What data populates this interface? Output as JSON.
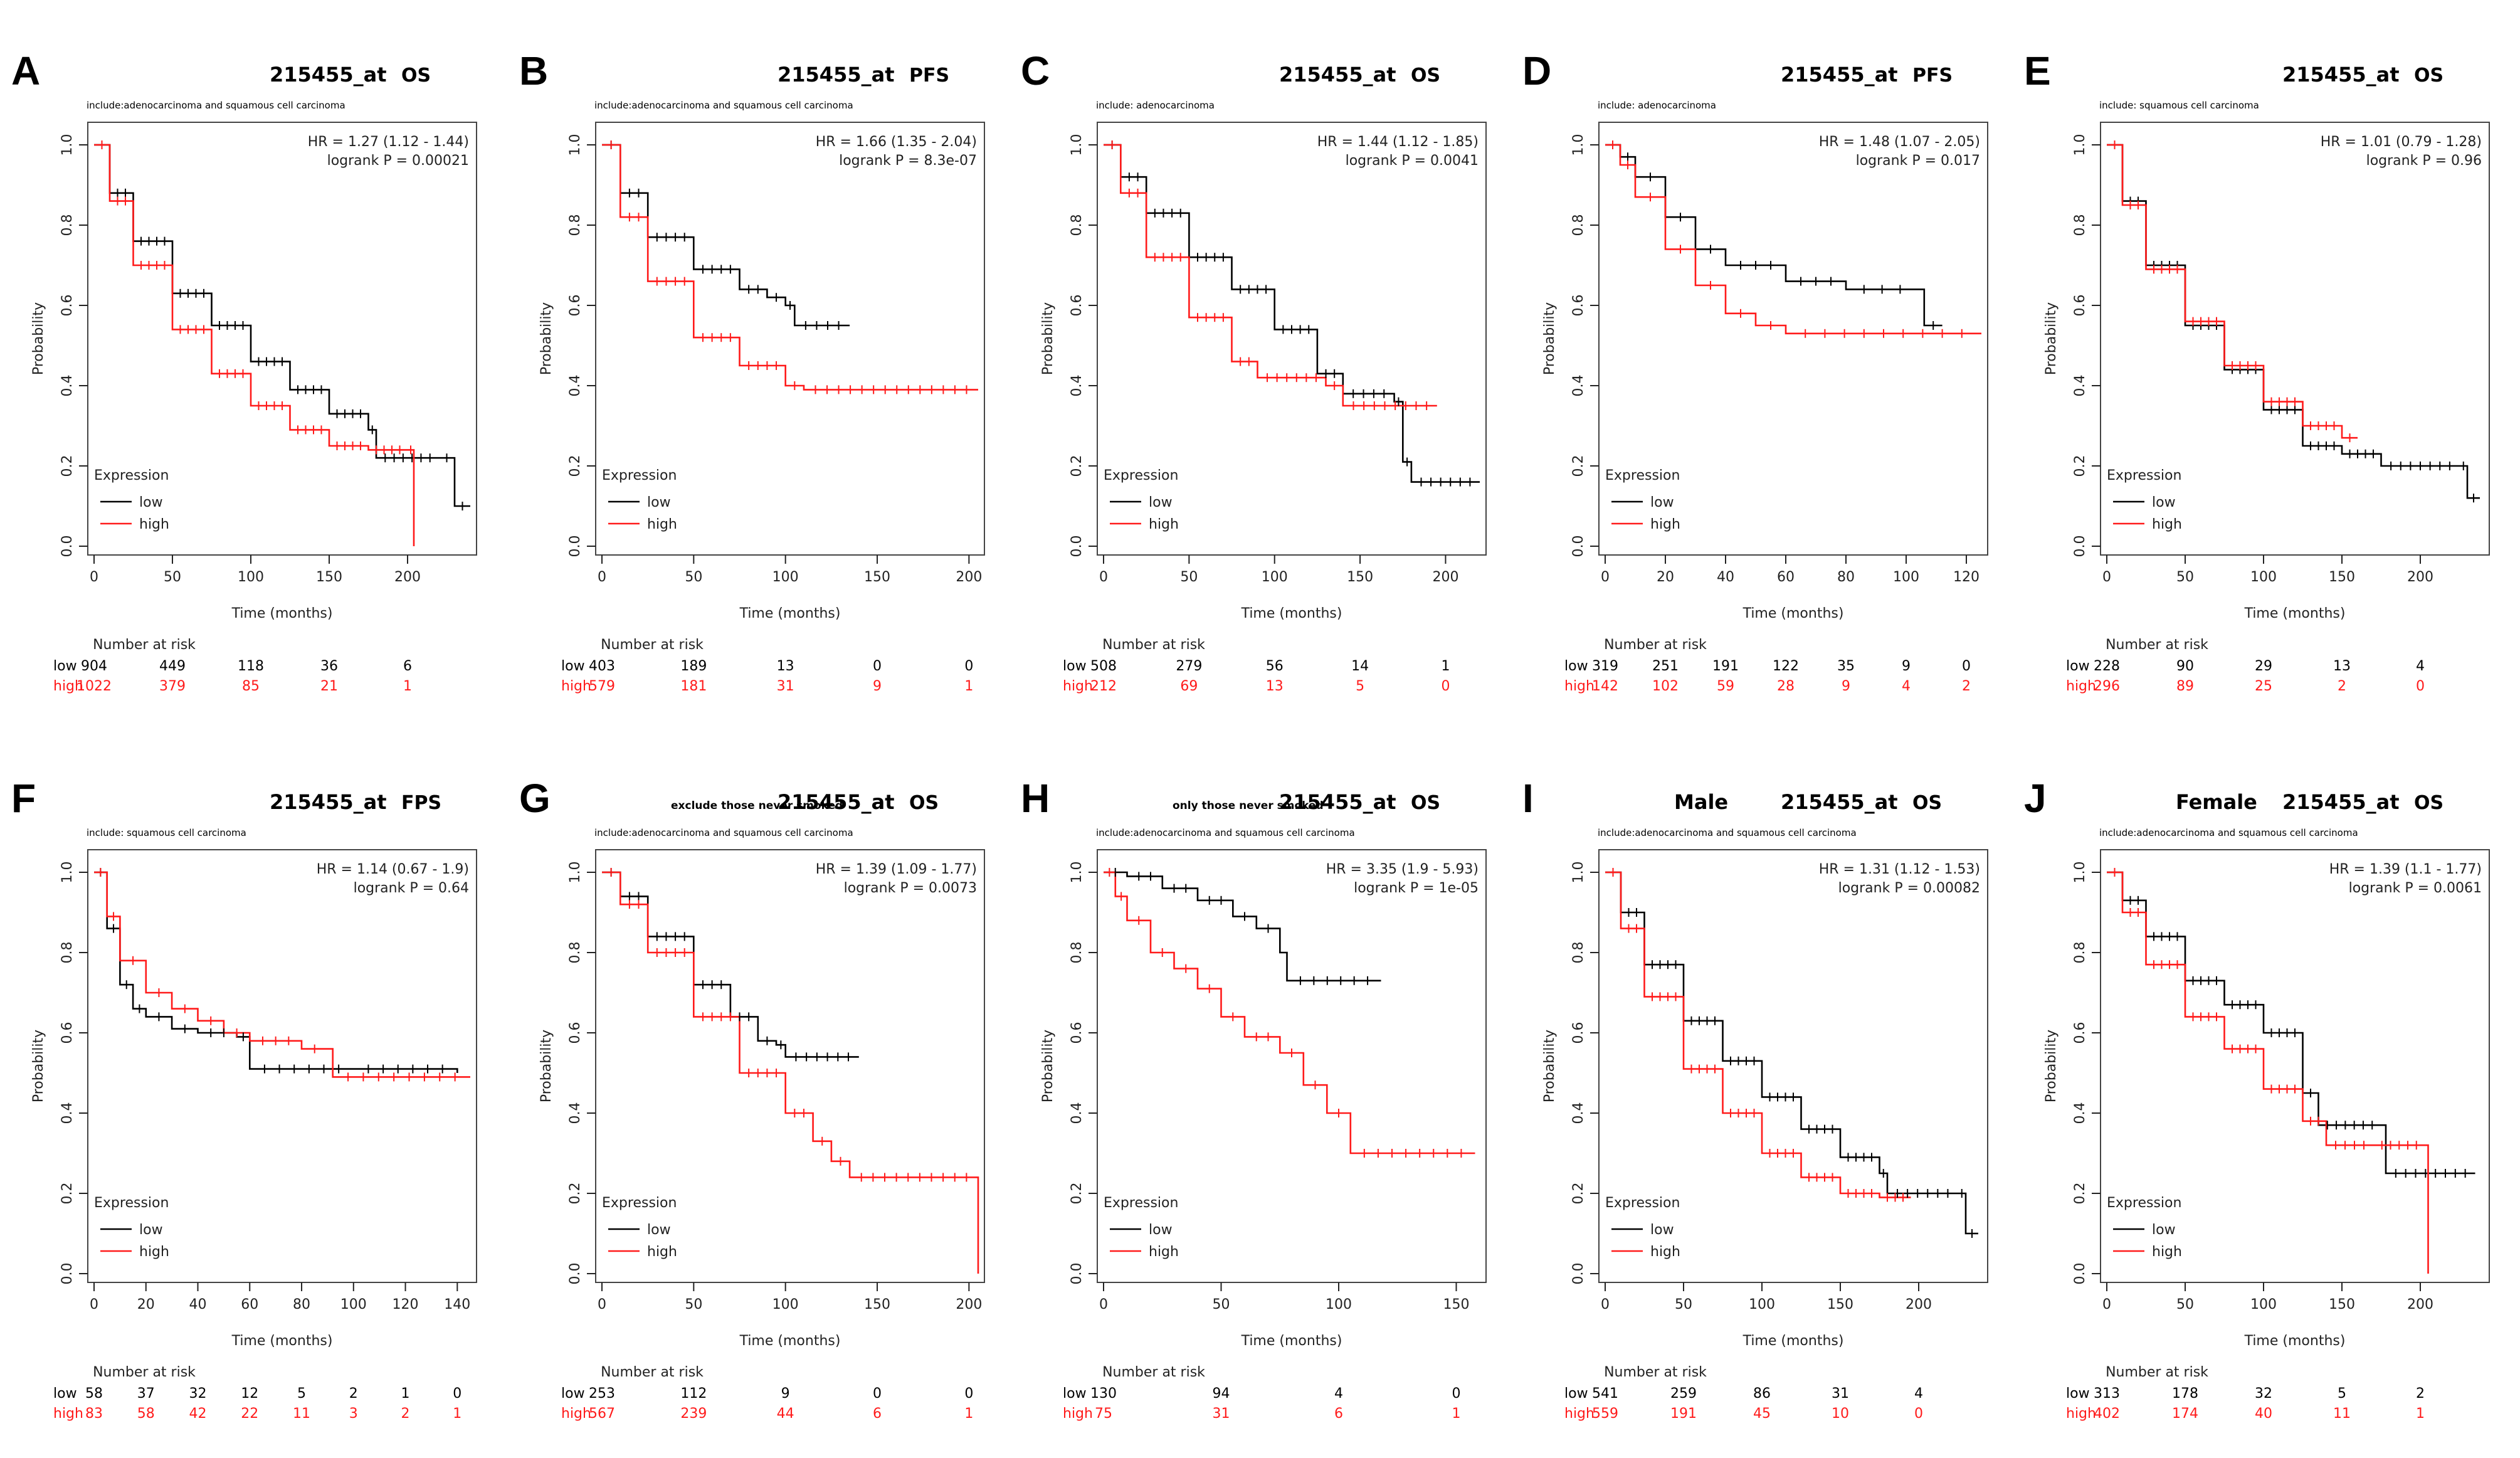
{
  "figure": {
    "colors": {
      "low": "#000000",
      "high": "#ff1a1a",
      "axis": "#222222",
      "frame": "#444444"
    },
    "common": {
      "y_label": "Probability",
      "x_label": "Time (months)",
      "legend_title": "Expression",
      "legend_low": "low",
      "legend_high": "high",
      "risk_header": "Number at risk",
      "risk_low_label": "low",
      "risk_high_label": "high",
      "y_ticks": [
        "0.0",
        "0.2",
        "0.4",
        "0.6",
        "0.8",
        "1.0"
      ]
    }
  },
  "chart_data": [
    {
      "type": "line",
      "panel": "A",
      "probe": "215455_at",
      "endpoint": "OS",
      "title_prefix": "",
      "subtitle": "include:adenocarcinoma and squamous cell carcinoma",
      "hr": "HR = 1.27 (1.12 - 1.44)",
      "logrank": "logrank P = 0.00021",
      "xmax": 240,
      "x_ticks": [
        0,
        50,
        100,
        150,
        200
      ],
      "ylim": [
        0,
        1
      ],
      "low_curve": [
        [
          0,
          1
        ],
        [
          10,
          0.88
        ],
        [
          25,
          0.76
        ],
        [
          50,
          0.63
        ],
        [
          75,
          0.55
        ],
        [
          100,
          0.46
        ],
        [
          125,
          0.39
        ],
        [
          150,
          0.33
        ],
        [
          175,
          0.29
        ],
        [
          180,
          0.22
        ],
        [
          220,
          0.22
        ],
        [
          230,
          0.1
        ],
        [
          240,
          0.1
        ]
      ],
      "high_curve": [
        [
          0,
          1
        ],
        [
          10,
          0.86
        ],
        [
          25,
          0.7
        ],
        [
          50,
          0.54
        ],
        [
          75,
          0.43
        ],
        [
          100,
          0.35
        ],
        [
          125,
          0.29
        ],
        [
          150,
          0.25
        ],
        [
          175,
          0.24
        ],
        [
          200,
          0.24
        ],
        [
          204,
          0
        ]
      ],
      "risk_times": [
        0,
        50,
        100,
        150,
        200
      ],
      "risk_low": [
        904,
        449,
        118,
        36,
        6
      ],
      "risk_high": [
        1022,
        379,
        85,
        21,
        1
      ]
    },
    {
      "type": "line",
      "panel": "B",
      "probe": "215455_at",
      "endpoint": "PFS",
      "title_prefix": "",
      "subtitle": "include:adenocarcinoma and squamous cell carcinoma",
      "hr": "HR = 1.66 (1.35 - 2.04)",
      "logrank": "logrank P = 8.3e-07",
      "xmax": 205,
      "x_ticks": [
        0,
        50,
        100,
        150,
        200
      ],
      "ylim": [
        0,
        1
      ],
      "low_curve": [
        [
          0,
          1
        ],
        [
          10,
          0.88
        ],
        [
          25,
          0.77
        ],
        [
          50,
          0.69
        ],
        [
          75,
          0.64
        ],
        [
          90,
          0.62
        ],
        [
          100,
          0.6
        ],
        [
          105,
          0.55
        ],
        [
          135,
          0.55
        ]
      ],
      "high_curve": [
        [
          0,
          1
        ],
        [
          10,
          0.82
        ],
        [
          25,
          0.66
        ],
        [
          50,
          0.52
        ],
        [
          75,
          0.45
        ],
        [
          100,
          0.4
        ],
        [
          110,
          0.39
        ],
        [
          205,
          0.39
        ]
      ],
      "risk_times": [
        0,
        50,
        100,
        150,
        200
      ],
      "risk_low": [
        403,
        189,
        13,
        0,
        0
      ],
      "risk_high": [
        579,
        181,
        31,
        9,
        1
      ]
    },
    {
      "type": "line",
      "panel": "C",
      "probe": "215455_at",
      "endpoint": "OS",
      "title_prefix": "",
      "subtitle": "include: adenocarcinoma",
      "hr": "HR = 1.44 (1.12 - 1.85)",
      "logrank": "logrank P = 0.0041",
      "xmax": 220,
      "x_ticks": [
        0,
        50,
        100,
        150,
        200
      ],
      "ylim": [
        0,
        1
      ],
      "low_curve": [
        [
          0,
          1
        ],
        [
          10,
          0.92
        ],
        [
          25,
          0.83
        ],
        [
          50,
          0.72
        ],
        [
          75,
          0.64
        ],
        [
          100,
          0.54
        ],
        [
          125,
          0.43
        ],
        [
          140,
          0.38
        ],
        [
          170,
          0.36
        ],
        [
          175,
          0.21
        ],
        [
          180,
          0.16
        ],
        [
          220,
          0.16
        ]
      ],
      "high_curve": [
        [
          0,
          1
        ],
        [
          10,
          0.88
        ],
        [
          25,
          0.72
        ],
        [
          50,
          0.57
        ],
        [
          75,
          0.46
        ],
        [
          90,
          0.42
        ],
        [
          130,
          0.4
        ],
        [
          140,
          0.35
        ],
        [
          195,
          0.35
        ]
      ],
      "risk_times": [
        0,
        50,
        100,
        150,
        200
      ],
      "risk_low": [
        508,
        279,
        56,
        14,
        1
      ],
      "risk_high": [
        212,
        69,
        13,
        5,
        0
      ]
    },
    {
      "type": "line",
      "panel": "D",
      "probe": "215455_at",
      "endpoint": "PFS",
      "title_prefix": "",
      "subtitle": "include: adenocarcinoma",
      "hr": "HR = 1.48 (1.07 - 2.05)",
      "logrank": "logrank P = 0.017",
      "xmax": 125,
      "x_ticks": [
        0,
        20,
        40,
        60,
        80,
        100,
        120
      ],
      "ylim": [
        0,
        1
      ],
      "low_curve": [
        [
          0,
          1
        ],
        [
          5,
          0.97
        ],
        [
          10,
          0.92
        ],
        [
          20,
          0.82
        ],
        [
          30,
          0.74
        ],
        [
          40,
          0.7
        ],
        [
          60,
          0.66
        ],
        [
          80,
          0.64
        ],
        [
          104,
          0.64
        ],
        [
          106,
          0.55
        ],
        [
          112,
          0.55
        ]
      ],
      "high_curve": [
        [
          0,
          1
        ],
        [
          5,
          0.95
        ],
        [
          10,
          0.87
        ],
        [
          20,
          0.74
        ],
        [
          30,
          0.65
        ],
        [
          40,
          0.58
        ],
        [
          50,
          0.55
        ],
        [
          60,
          0.53
        ],
        [
          125,
          0.53
        ]
      ],
      "risk_times": [
        0,
        20,
        40,
        60,
        80,
        100,
        120
      ],
      "risk_low": [
        319,
        251,
        191,
        122,
        35,
        9,
        0
      ],
      "risk_high": [
        142,
        102,
        59,
        28,
        9,
        4,
        2
      ]
    },
    {
      "type": "line",
      "panel": "E",
      "probe": "215455_at",
      "endpoint": "OS",
      "title_prefix": "",
      "subtitle": "include: squamous cell carcinoma",
      "hr": "HR = 1.01 (0.79 - 1.28)",
      "logrank": "logrank P = 0.96",
      "xmax": 240,
      "x_ticks": [
        0,
        50,
        100,
        150,
        200
      ],
      "ylim": [
        0,
        1
      ],
      "low_curve": [
        [
          0,
          1
        ],
        [
          10,
          0.86
        ],
        [
          25,
          0.7
        ],
        [
          50,
          0.55
        ],
        [
          75,
          0.44
        ],
        [
          100,
          0.34
        ],
        [
          125,
          0.25
        ],
        [
          150,
          0.23
        ],
        [
          175,
          0.2
        ],
        [
          225,
          0.2
        ],
        [
          230,
          0.12
        ],
        [
          238,
          0.12
        ]
      ],
      "high_curve": [
        [
          0,
          1
        ],
        [
          10,
          0.85
        ],
        [
          25,
          0.69
        ],
        [
          50,
          0.56
        ],
        [
          75,
          0.45
        ],
        [
          100,
          0.36
        ],
        [
          125,
          0.3
        ],
        [
          150,
          0.27
        ],
        [
          160,
          0.27
        ]
      ],
      "risk_times": [
        0,
        50,
        100,
        150,
        200
      ],
      "risk_low": [
        228,
        90,
        29,
        13,
        4
      ],
      "risk_high": [
        296,
        89,
        25,
        2,
        0
      ]
    },
    {
      "type": "line",
      "panel": "F",
      "probe": "215455_at",
      "endpoint": "FPS",
      "title_prefix": "",
      "subtitle": "include: squamous cell carcinoma",
      "hr": "HR = 1.14 (0.67 - 1.9)",
      "logrank": "logrank P = 0.64",
      "xmax": 145,
      "x_ticks": [
        0,
        20,
        40,
        60,
        80,
        100,
        120,
        140
      ],
      "ylim": [
        0,
        1
      ],
      "low_curve": [
        [
          0,
          1
        ],
        [
          5,
          0.86
        ],
        [
          10,
          0.72
        ],
        [
          15,
          0.66
        ],
        [
          20,
          0.64
        ],
        [
          30,
          0.61
        ],
        [
          40,
          0.6
        ],
        [
          55,
          0.59
        ],
        [
          60,
          0.51
        ],
        [
          100,
          0.51
        ],
        [
          140,
          0.5
        ]
      ],
      "high_curve": [
        [
          0,
          1
        ],
        [
          5,
          0.89
        ],
        [
          10,
          0.78
        ],
        [
          20,
          0.7
        ],
        [
          30,
          0.66
        ],
        [
          40,
          0.63
        ],
        [
          50,
          0.6
        ],
        [
          60,
          0.58
        ],
        [
          80,
          0.56
        ],
        [
          90,
          0.56
        ],
        [
          92,
          0.49
        ],
        [
          145,
          0.49
        ]
      ],
      "risk_times": [
        0,
        20,
        40,
        60,
        80,
        100,
        120,
        140
      ],
      "risk_low": [
        58,
        37,
        32,
        12,
        5,
        2,
        1,
        0
      ],
      "risk_high": [
        83,
        58,
        42,
        22,
        11,
        3,
        2,
        1
      ]
    },
    {
      "type": "line",
      "panel": "G",
      "probe": "215455_at",
      "endpoint": "OS",
      "title_prefix": "exclude those never smoked",
      "subtitle": "include:adenocarcinoma and squamous cell carcinoma",
      "hr": "HR = 1.39 (1.09 - 1.77)",
      "logrank": "logrank P = 0.0073",
      "xmax": 205,
      "x_ticks": [
        0,
        50,
        100,
        150,
        200
      ],
      "ylim": [
        0,
        1
      ],
      "low_curve": [
        [
          0,
          1
        ],
        [
          10,
          0.94
        ],
        [
          25,
          0.84
        ],
        [
          50,
          0.72
        ],
        [
          70,
          0.64
        ],
        [
          85,
          0.58
        ],
        [
          95,
          0.57
        ],
        [
          100,
          0.54
        ],
        [
          140,
          0.54
        ]
      ],
      "high_curve": [
        [
          0,
          1
        ],
        [
          10,
          0.92
        ],
        [
          25,
          0.8
        ],
        [
          50,
          0.64
        ],
        [
          75,
          0.5
        ],
        [
          100,
          0.4
        ],
        [
          115,
          0.33
        ],
        [
          125,
          0.28
        ],
        [
          135,
          0.24
        ],
        [
          205,
          0.24
        ],
        [
          205,
          0
        ]
      ],
      "risk_times": [
        0,
        50,
        100,
        150,
        200
      ],
      "risk_low": [
        253,
        112,
        9,
        0,
        0
      ],
      "risk_high": [
        567,
        239,
        44,
        6,
        1
      ]
    },
    {
      "type": "line",
      "panel": "H",
      "probe": "215455_at",
      "endpoint": "OS",
      "title_prefix": "only those never smoked",
      "subtitle": "include:adenocarcinoma and squamous cell carcinoma",
      "hr": "HR = 3.35 (1.9 - 5.93)",
      "logrank": "logrank P = 1e-05",
      "xmax": 160,
      "x_ticks": [
        0,
        50,
        100,
        150
      ],
      "ylim": [
        0,
        1
      ],
      "low_curve": [
        [
          0,
          1
        ],
        [
          10,
          0.99
        ],
        [
          25,
          0.96
        ],
        [
          40,
          0.93
        ],
        [
          55,
          0.89
        ],
        [
          65,
          0.86
        ],
        [
          75,
          0.8
        ],
        [
          78,
          0.73
        ],
        [
          118,
          0.73
        ]
      ],
      "high_curve": [
        [
          0,
          1
        ],
        [
          5,
          0.94
        ],
        [
          10,
          0.88
        ],
        [
          20,
          0.8
        ],
        [
          30,
          0.76
        ],
        [
          40,
          0.71
        ],
        [
          50,
          0.64
        ],
        [
          60,
          0.59
        ],
        [
          75,
          0.55
        ],
        [
          85,
          0.47
        ],
        [
          95,
          0.4
        ],
        [
          105,
          0.3
        ],
        [
          158,
          0.3
        ]
      ],
      "risk_times": [
        0,
        50,
        100,
        150
      ],
      "risk_low": [
        130,
        94,
        4,
        0
      ],
      "risk_high": [
        75,
        31,
        6,
        1
      ]
    },
    {
      "type": "line",
      "panel": "I",
      "probe": "215455_at",
      "endpoint": "OS",
      "title_prefix": "Male",
      "subtitle": "include:adenocarcinoma and squamous cell carcinoma",
      "hr": "HR = 1.31 (1.12 - 1.53)",
      "logrank": "logrank P = 0.00082",
      "xmax": 240,
      "x_ticks": [
        0,
        50,
        100,
        150,
        200
      ],
      "ylim": [
        0,
        1
      ],
      "low_curve": [
        [
          0,
          1
        ],
        [
          10,
          0.9
        ],
        [
          25,
          0.77
        ],
        [
          50,
          0.63
        ],
        [
          75,
          0.53
        ],
        [
          100,
          0.44
        ],
        [
          125,
          0.36
        ],
        [
          150,
          0.29
        ],
        [
          175,
          0.25
        ],
        [
          180,
          0.2
        ],
        [
          225,
          0.2
        ],
        [
          230,
          0.1
        ],
        [
          238,
          0.1
        ]
      ],
      "high_curve": [
        [
          0,
          1
        ],
        [
          10,
          0.86
        ],
        [
          25,
          0.69
        ],
        [
          50,
          0.51
        ],
        [
          75,
          0.4
        ],
        [
          100,
          0.3
        ],
        [
          125,
          0.24
        ],
        [
          150,
          0.2
        ],
        [
          175,
          0.19
        ],
        [
          195,
          0.19
        ]
      ],
      "risk_times": [
        0,
        50,
        100,
        150,
        200
      ],
      "risk_low": [
        541,
        259,
        86,
        31,
        4
      ],
      "risk_high": [
        559,
        191,
        45,
        10,
        0
      ]
    },
    {
      "type": "line",
      "panel": "J",
      "probe": "215455_at",
      "endpoint": "OS",
      "title_prefix": "Female",
      "subtitle": "include:adenocarcinoma and squamous cell carcinoma",
      "hr": "HR = 1.39 (1.1 - 1.77)",
      "logrank": "logrank P = 0.0061",
      "xmax": 240,
      "x_ticks": [
        0,
        50,
        100,
        150,
        200
      ],
      "ylim": [
        0,
        1
      ],
      "low_curve": [
        [
          0,
          1
        ],
        [
          10,
          0.93
        ],
        [
          25,
          0.84
        ],
        [
          50,
          0.73
        ],
        [
          75,
          0.67
        ],
        [
          100,
          0.6
        ],
        [
          125,
          0.45
        ],
        [
          135,
          0.37
        ],
        [
          175,
          0.37
        ],
        [
          178,
          0.25
        ],
        [
          235,
          0.25
        ]
      ],
      "high_curve": [
        [
          0,
          1
        ],
        [
          10,
          0.9
        ],
        [
          25,
          0.77
        ],
        [
          50,
          0.64
        ],
        [
          75,
          0.56
        ],
        [
          100,
          0.46
        ],
        [
          125,
          0.38
        ],
        [
          140,
          0.32
        ],
        [
          170,
          0.32
        ],
        [
          203,
          0.32
        ],
        [
          205,
          0
        ]
      ],
      "risk_times": [
        0,
        50,
        100,
        150,
        200
      ],
      "risk_low": [
        313,
        178,
        32,
        5,
        2
      ],
      "risk_high": [
        402,
        174,
        40,
        11,
        1
      ]
    }
  ]
}
